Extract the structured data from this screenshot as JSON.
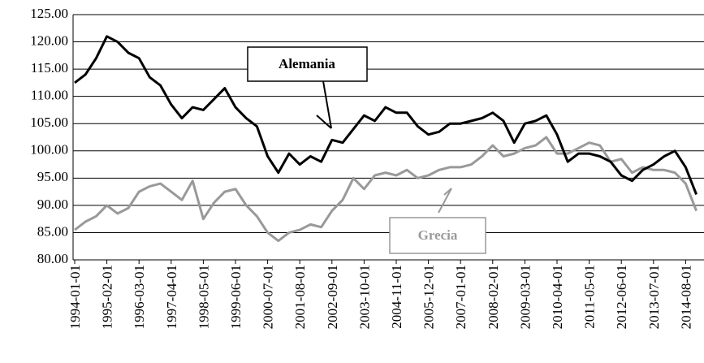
{
  "chart_data": {
    "type": "line",
    "categories": [
      "1994-01-01",
      null,
      null,
      "1995-02-01",
      null,
      null,
      "1996-03-01",
      null,
      null,
      "1997-04-01",
      null,
      null,
      "1998-05-01",
      null,
      null,
      "1999-06-01",
      null,
      null,
      "2000-07-01",
      null,
      null,
      "2001-08-01",
      null,
      null,
      "2002-09-01",
      null,
      null,
      "2003-10-01",
      null,
      null,
      "2004-11-01",
      null,
      null,
      "2005-12-01",
      null,
      null,
      "2007-01-01",
      null,
      null,
      "2008-02-01",
      null,
      null,
      "2009-03-01",
      null,
      null,
      "2010-04-01",
      null,
      null,
      "2011-05-01",
      null,
      null,
      "2012-06-01",
      null,
      null,
      "2013-07-01",
      null,
      null,
      "2014-08-01",
      null
    ],
    "series": [
      {
        "name": "Alemania",
        "color": "#000000",
        "values": [
          112.5,
          114,
          117,
          121,
          120,
          118,
          117,
          113.5,
          112,
          108.5,
          106,
          108,
          107.5,
          109.5,
          111.5,
          108,
          106,
          104.5,
          99,
          96,
          99.5,
          97.5,
          99,
          98,
          102,
          101.5,
          104,
          106.5,
          105.5,
          108,
          107,
          107,
          104.5,
          103,
          103.5,
          105,
          105,
          105.5,
          106,
          107,
          105.5,
          101.5,
          105,
          105.5,
          106.5,
          103,
          98,
          99.5,
          99.5,
          99,
          98,
          95.5,
          94.5,
          96.5,
          97.5,
          99,
          100,
          97,
          92
        ]
      },
      {
        "name": "Grecia",
        "color": "#999999",
        "values": [
          85.5,
          87,
          88,
          90,
          88.5,
          89.5,
          92.5,
          93.5,
          94,
          92.5,
          91,
          94.5,
          87.5,
          90.5,
          92.5,
          93,
          90,
          88,
          85,
          83.5,
          85,
          85.5,
          86.5,
          86,
          89,
          91,
          95,
          93,
          95.5,
          96,
          95.5,
          96.5,
          95,
          95.5,
          96.5,
          97,
          97,
          97.5,
          99,
          101,
          99,
          99.5,
          100.5,
          101,
          102.5,
          99.5,
          99.5,
          100.5,
          101.5,
          101,
          98,
          98.5,
          96,
          97,
          96.5,
          96.5,
          96,
          94,
          89
        ]
      }
    ],
    "ylim": [
      80,
      125
    ],
    "yticks": [
      {
        "value": 80,
        "label": "80.00"
      },
      {
        "value": 85,
        "label": "85.00"
      },
      {
        "value": 90,
        "label": "90.00"
      },
      {
        "value": 95,
        "label": "95.00"
      },
      {
        "value": 100,
        "label": "100.00"
      },
      {
        "value": 105,
        "label": "105.00"
      },
      {
        "value": 110,
        "label": "110.00"
      },
      {
        "value": 115,
        "label": "115.00"
      },
      {
        "value": 120,
        "label": "120.00"
      },
      {
        "value": 125,
        "label": "125.00"
      }
    ],
    "grid": true
  }
}
